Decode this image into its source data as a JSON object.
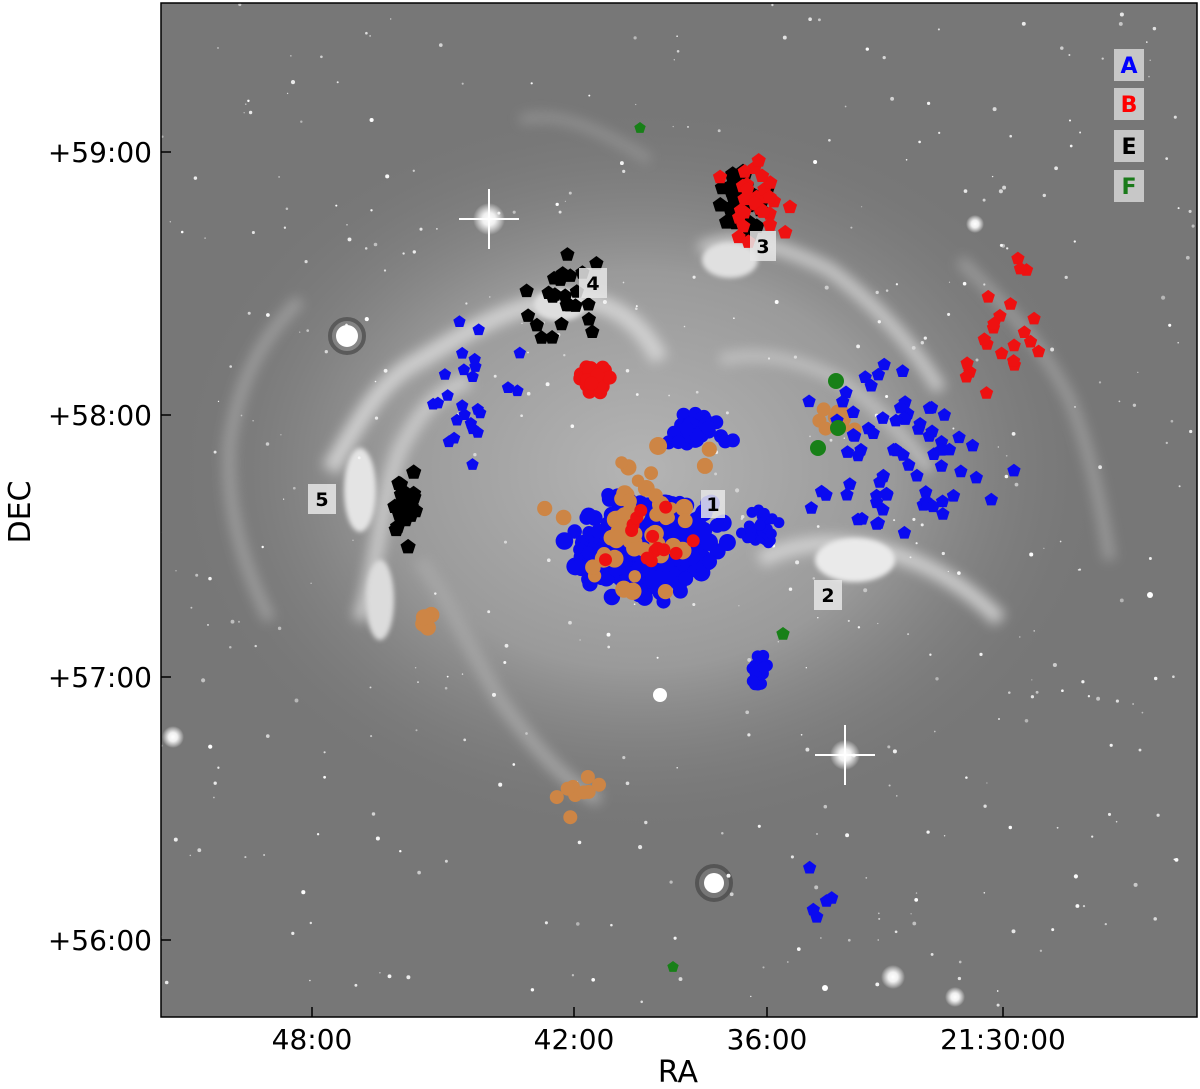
{
  "figure": {
    "axis": {
      "x_label": "RA",
      "y_label": "DEC",
      "x_ticks": [
        {
          "label": "48:00",
          "ra_min": 48
        },
        {
          "label": "42:00",
          "ra_min": 42
        },
        {
          "label": "36:00",
          "ra_min": 36
        },
        {
          "label": "21:30:00",
          "ra_min": 30
        }
      ],
      "y_ticks": [
        {
          "label": "+59:00",
          "dec": 59
        },
        {
          "label": "+58:00",
          "dec": 58
        },
        {
          "label": "+57:00",
          "dec": 57
        },
        {
          "label": "+56:00",
          "dec": 56
        }
      ]
    },
    "region_labels": [
      "1",
      "2",
      "3",
      "4",
      "5"
    ],
    "legend": [
      {
        "key": "A",
        "color": "#0000ff"
      },
      {
        "key": "B",
        "color": "#ff0000"
      },
      {
        "key": "E",
        "color": "#000000"
      },
      {
        "key": "F",
        "color": "#1a7a1a"
      }
    ],
    "colors": {
      "A": "#0a0af0",
      "B": "#ee1111",
      "E": "#000000",
      "F": "#188018",
      "orange": "#cd8545",
      "background": "#7a7a7a"
    }
  }
}
